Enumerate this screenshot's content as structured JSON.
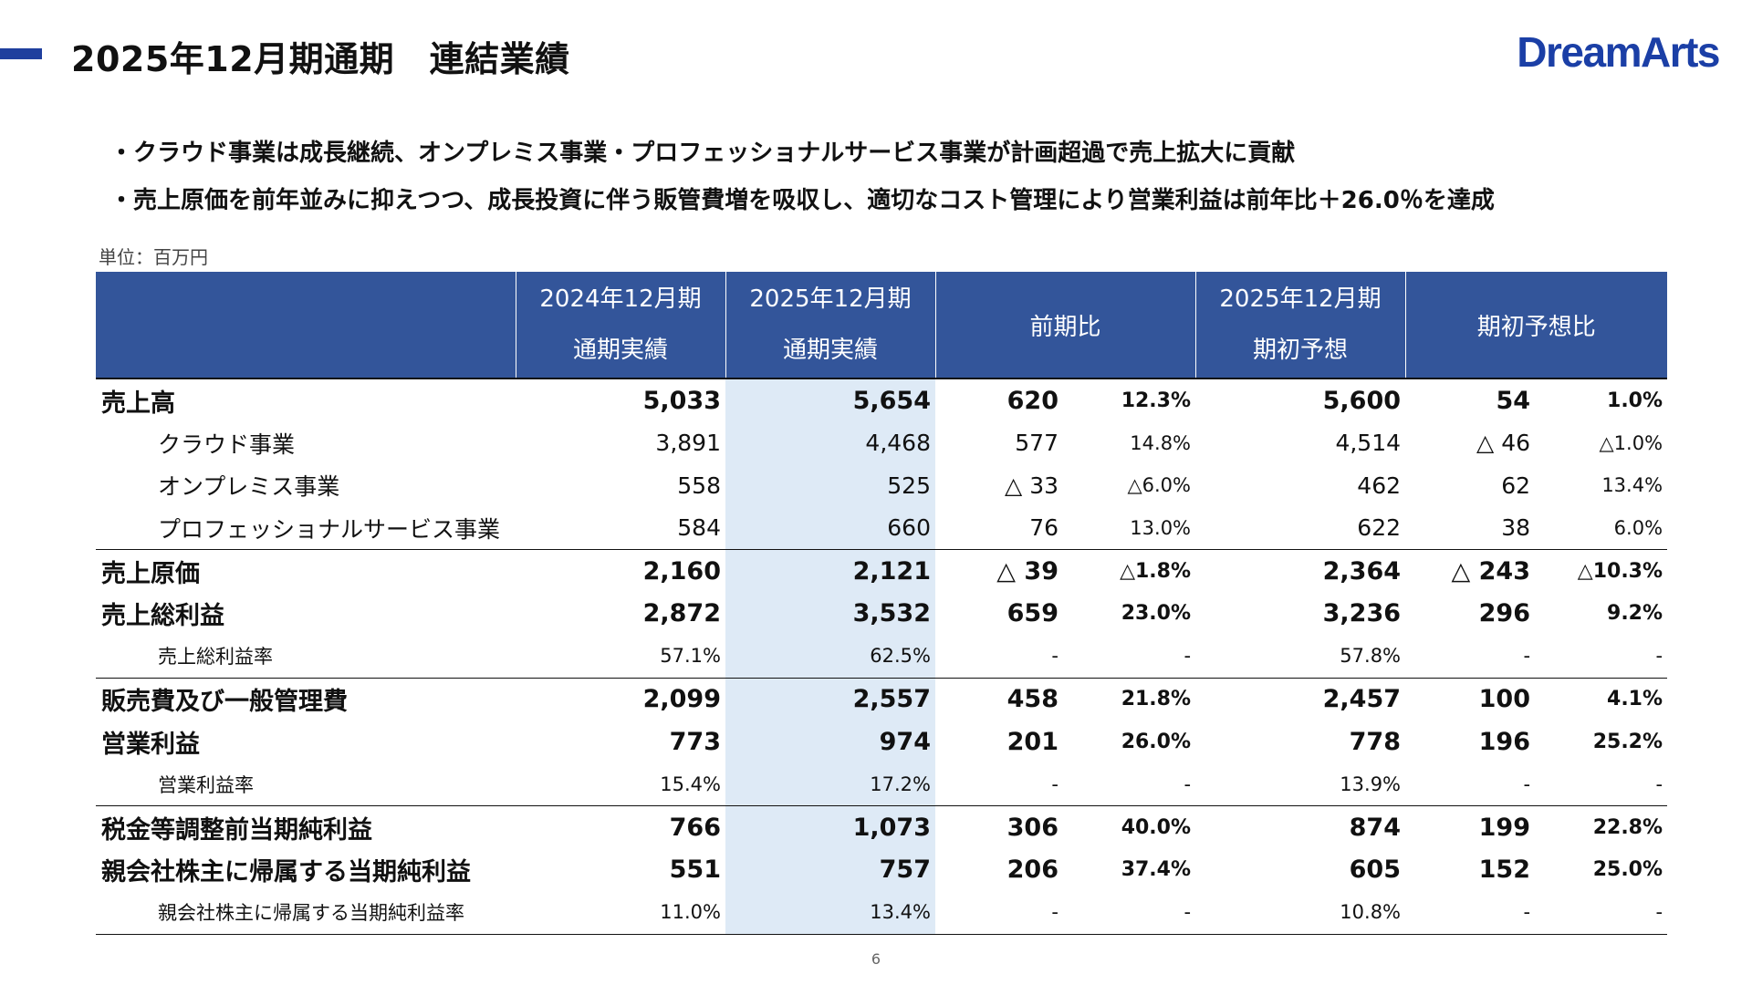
{
  "title": "2025年12月期通期　連結業績",
  "logo_text": "DreamArts",
  "bullets": [
    "クラウド事業は成長継続、オンプレミス事業・プロフェッショナルサービス事業が計画超過で売上拡大に貢献",
    "売上原価を前年並みに抑えつつ、成長投資に伴う販管費増を吸収し、適切なコスト管理により営業利益は前年比＋26.0％を達成"
  ],
  "unit_label": "単位：百万円",
  "table": {
    "headers": {
      "fy2024_line1": "2024年12月期",
      "fy2024_line2": "通期実績",
      "fy2025_line1": "2025年12月期",
      "fy2025_line2": "通期実績",
      "yoy": "前期比",
      "forecast_line1": "2025年12月期",
      "forecast_line2": "期初予想",
      "vs_forecast": "期初予想比"
    },
    "rows": [
      {
        "label": "売上高",
        "fy2024": "5,033",
        "fy2025": "5,654",
        "yoy_amount": "620",
        "yoy_pct": "12.3%",
        "forecast": "5,600",
        "vs_amount": "54",
        "vs_pct": "1.0%"
      },
      {
        "label": "クラウド事業",
        "fy2024": "3,891",
        "fy2025": "4,468",
        "yoy_amount": "577",
        "yoy_pct": "14.8%",
        "forecast": "4,514",
        "vs_amount": "△ 46",
        "vs_pct": "△1.0%"
      },
      {
        "label": "オンプレミス事業",
        "fy2024": "558",
        "fy2025": "525",
        "yoy_amount": "△ 33",
        "yoy_pct": "△6.0%",
        "forecast": "462",
        "vs_amount": "62",
        "vs_pct": "13.4%"
      },
      {
        "label": "プロフェッショナルサービス事業",
        "fy2024": "584",
        "fy2025": "660",
        "yoy_amount": "76",
        "yoy_pct": "13.0%",
        "forecast": "622",
        "vs_amount": "38",
        "vs_pct": "6.0%"
      },
      {
        "label": "売上原価",
        "fy2024": "2,160",
        "fy2025": "2,121",
        "yoy_amount": "△ 39",
        "yoy_pct": "△1.8%",
        "forecast": "2,364",
        "vs_amount": "△ 243",
        "vs_pct": "△10.3%"
      },
      {
        "label": "売上総利益",
        "fy2024": "2,872",
        "fy2025": "3,532",
        "yoy_amount": "659",
        "yoy_pct": "23.0%",
        "forecast": "3,236",
        "vs_amount": "296",
        "vs_pct": "9.2%"
      },
      {
        "label": "売上総利益率",
        "fy2024": "57.1%",
        "fy2025": "62.5%",
        "yoy_amount": "-",
        "yoy_pct": "-",
        "forecast": "57.8%",
        "vs_amount": "-",
        "vs_pct": "-"
      },
      {
        "label": "販売費及び一般管理費",
        "fy2024": "2,099",
        "fy2025": "2,557",
        "yoy_amount": "458",
        "yoy_pct": "21.8%",
        "forecast": "2,457",
        "vs_amount": "100",
        "vs_pct": "4.1%"
      },
      {
        "label": "営業利益",
        "fy2024": "773",
        "fy2025": "974",
        "yoy_amount": "201",
        "yoy_pct": "26.0%",
        "forecast": "778",
        "vs_amount": "196",
        "vs_pct": "25.2%"
      },
      {
        "label": "営業利益率",
        "fy2024": "15.4%",
        "fy2025": "17.2%",
        "yoy_amount": "-",
        "yoy_pct": "-",
        "forecast": "13.9%",
        "vs_amount": "-",
        "vs_pct": "-"
      },
      {
        "label": "税金等調整前当期純利益",
        "fy2024": "766",
        "fy2025": "1,073",
        "yoy_amount": "306",
        "yoy_pct": "40.0%",
        "forecast": "874",
        "vs_amount": "199",
        "vs_pct": "22.8%"
      },
      {
        "label": "親会社株主に帰属する当期純利益",
        "fy2024": "551",
        "fy2025": "757",
        "yoy_amount": "206",
        "yoy_pct": "37.4%",
        "forecast": "605",
        "vs_amount": "152",
        "vs_pct": "25.0%"
      },
      {
        "label": "親会社株主に帰属する当期純利益率",
        "fy2024": "11.0%",
        "fy2025": "13.4%",
        "yoy_amount": "-",
        "yoy_pct": "-",
        "forecast": "10.8%",
        "vs_amount": "-",
        "vs_pct": "-"
      }
    ]
  },
  "page_number": "6",
  "colors": {
    "brand": "#1b3fa6",
    "header_bg": "#33559a",
    "highlight_col": "#deeaf6"
  }
}
